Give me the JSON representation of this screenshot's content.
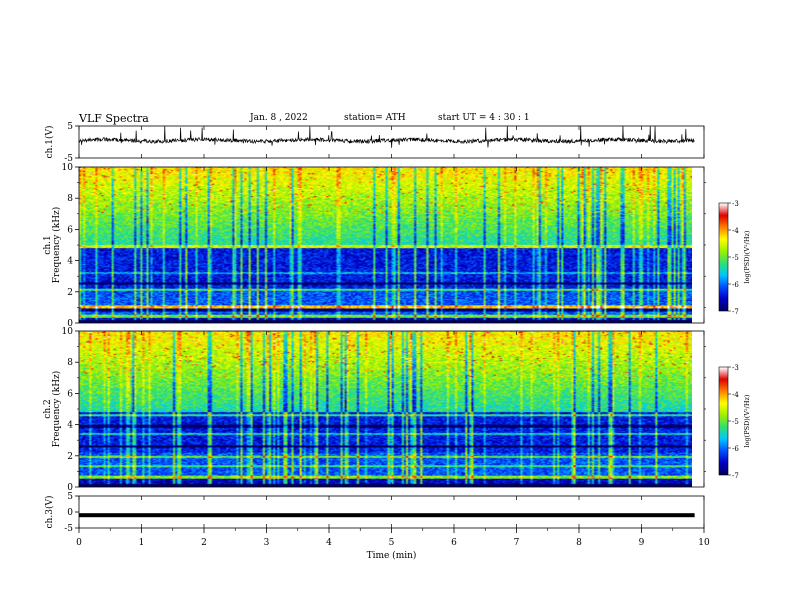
{
  "header": {
    "title": "VLF  Spectra",
    "date": "Jan. 8  , 2022",
    "station": "station= ATH",
    "start": "start  UT  =   4  : 30 : 1"
  },
  "chart_data": [
    {
      "type": "line",
      "name": "ch1-waveform",
      "ylabel": "ch.1(V)",
      "ylim": [
        -5,
        5
      ],
      "yticks": [
        "5",
        "-5"
      ],
      "baseline": 0.5,
      "color": "#000000"
    },
    {
      "type": "heatmap",
      "name": "ch1-spectrogram",
      "ylabel_lines": [
        "ch.1",
        "Frequency  (kHz)"
      ],
      "ylim": [
        0,
        10
      ],
      "yticks": [
        "0",
        "2",
        "4",
        "6",
        "8",
        "10"
      ],
      "colorbar": {
        "label": "log(PSD)(V²/Hz)",
        "ticks": [
          "-3",
          "-4",
          "-5",
          "-6",
          "-7"
        ],
        "range": [
          -7,
          -3
        ]
      }
    },
    {
      "type": "heatmap",
      "name": "ch2-spectrogram",
      "ylabel_lines": [
        "ch.2",
        "Frequency  (kHz)"
      ],
      "ylim": [
        0,
        10
      ],
      "yticks": [
        "0",
        "2",
        "4",
        "6",
        "8",
        "10"
      ],
      "colorbar": {
        "label": "log(PSD)(V²/Hz)",
        "ticks": [
          "-3",
          "-4",
          "-5",
          "-6",
          "-7"
        ],
        "range": [
          -7,
          -3
        ]
      }
    },
    {
      "type": "line",
      "name": "ch3-waveform",
      "ylabel": "ch.3(V)",
      "ylim": [
        -5,
        5
      ],
      "yticks": [
        "5",
        "0",
        "-5"
      ],
      "baseline": -1.0,
      "color": "#000000"
    }
  ],
  "xaxis": {
    "label": "Time  (min)",
    "xlim": [
      0,
      10
    ],
    "ticks": [
      "0",
      "1",
      "2",
      "3",
      "4",
      "5",
      "6",
      "7",
      "8",
      "9",
      "10"
    ],
    "data_end": 9.85
  },
  "colors": {
    "colormap": [
      "#000060",
      "#0000c8",
      "#0050ff",
      "#00c8ff",
      "#30e070",
      "#a0f000",
      "#ffff00",
      "#ff8000",
      "#e00000",
      "#ffffff"
    ]
  }
}
